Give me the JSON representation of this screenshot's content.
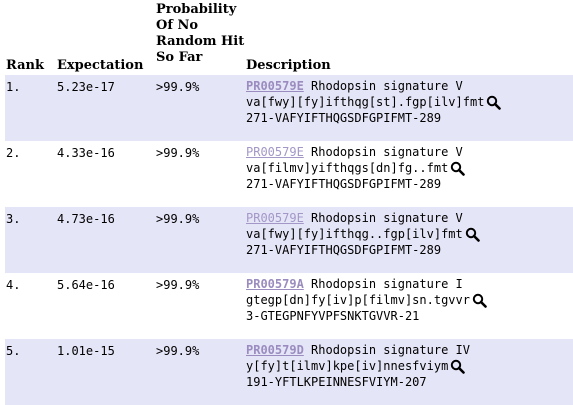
{
  "header": {
    "rank": "Rank",
    "expectation": "Expectation",
    "probability": [
      "Probability",
      "Of No",
      "Random Hit",
      "So Far"
    ],
    "description": "Description"
  },
  "rows": [
    {
      "rank": "1.",
      "expectation": "5.23e-17",
      "probability": ">99.9%",
      "accession": "PR00579E",
      "name": "Rhodopsin signature V",
      "pattern": "va[fwy][fy]ifthqg[st].fgp[ilv]fmt",
      "match": "271-VAFYIFTHQGSDFGPIFMT-289"
    },
    {
      "rank": "2.",
      "expectation": "4.33e-16",
      "probability": ">99.9%",
      "accession": "PR00579E",
      "name": "Rhodopsin signature V",
      "pattern": "va[filmv]yifthqgs[dn]fg..fmt",
      "match": "271-VAFYIFTHQGSDFGPIFMT-289"
    },
    {
      "rank": "3.",
      "expectation": "4.73e-16",
      "probability": ">99.9%",
      "accession": "PR00579E",
      "name": "Rhodopsin signature V",
      "pattern": "va[fwy][fy]ifthqg..fgp[ilv]fmt",
      "match": "271-VAFYIFTHQGSDFGPIFMT-289"
    },
    {
      "rank": "4.",
      "expectation": "5.64e-16",
      "probability": ">99.9%",
      "accession": "PR00579A",
      "name": "Rhodopsin signature I",
      "pattern": "gtegp[dn]fy[iv]p[filmv]sn.tgvvr",
      "match": "3-GTEGPNFYVPFSNKTGVVR-21"
    },
    {
      "rank": "5.",
      "expectation": "1.01e-15",
      "probability": ">99.9%",
      "accession": "PR00579D",
      "name": "Rhodopsin signature IV",
      "pattern": "y[fy]t[ilmv]kpe[iv]nnesfviym",
      "match": "191-YFTLKPEINNESFVIYM-207"
    }
  ]
}
